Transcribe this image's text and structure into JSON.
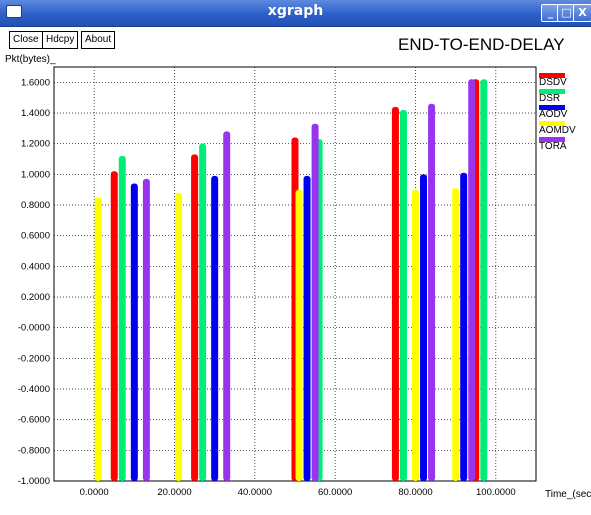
{
  "window": {
    "title": "xgraph",
    "controls": {
      "minimize": "_",
      "maximize": "□",
      "close": "X"
    }
  },
  "toolbar": {
    "close_label": "Close",
    "hdcpy_label": "Hdcpy",
    "about_label": "About"
  },
  "chart_data": {
    "type": "bar",
    "title": "END-TO-END-DELAY",
    "ylabel": "Pkt(bytes)_",
    "xlabel": "Time_(sec)",
    "xlim": [
      -10,
      110
    ],
    "ylim": [
      -1.0,
      1.7
    ],
    "x_ticks": [
      {
        "v": 0,
        "label": "0.0000"
      },
      {
        "v": 20,
        "label": "20.0000"
      },
      {
        "v": 40,
        "label": "40.0000"
      },
      {
        "v": 60,
        "label": "60.0000"
      },
      {
        "v": 80,
        "label": "80.0000"
      },
      {
        "v": 100,
        "label": "100.0000"
      }
    ],
    "y_ticks": [
      {
        "v": 1.6,
        "label": "1.6000"
      },
      {
        "v": 1.4,
        "label": "1.4000"
      },
      {
        "v": 1.2,
        "label": "1.2000"
      },
      {
        "v": 1.0,
        "label": "1.0000"
      },
      {
        "v": 0.8,
        "label": "0.8000"
      },
      {
        "v": 0.6,
        "label": "0.6000"
      },
      {
        "v": 0.4,
        "label": "0.4000"
      },
      {
        "v": 0.2,
        "label": "0.2000"
      },
      {
        "v": 0.0,
        "label": "-0.0000"
      },
      {
        "v": -0.2,
        "label": "-0.2000"
      },
      {
        "v": -0.4,
        "label": "-0.4000"
      },
      {
        "v": -0.6,
        "label": "-0.6000"
      },
      {
        "v": -0.8,
        "label": "-0.8000"
      },
      {
        "v": -1.0,
        "label": "-1.0000"
      }
    ],
    "grid": true,
    "legend_position": "right",
    "series": [
      {
        "name": "DSDV",
        "color": "#ff0000",
        "x": [
          5,
          25,
          50,
          75,
          95
        ],
        "values": [
          1.02,
          1.13,
          1.24,
          1.44,
          1.62
        ]
      },
      {
        "name": "DSR",
        "color": "#00ee77",
        "x": [
          7,
          27,
          56,
          77,
          97
        ],
        "values": [
          1.12,
          1.2,
          1.23,
          1.42,
          1.62
        ]
      },
      {
        "name": "AODV",
        "color": "#0000ee",
        "x": [
          10,
          30,
          53,
          82,
          92
        ],
        "values": [
          0.94,
          0.99,
          0.99,
          1.0,
          1.01
        ]
      },
      {
        "name": "AOMDV",
        "color": "#ffff00",
        "x": [
          1,
          21,
          51,
          80,
          90
        ],
        "values": [
          0.85,
          0.88,
          0.9,
          0.9,
          0.91
        ]
      },
      {
        "name": "TORA",
        "color": "#9933ee",
        "x": [
          13,
          33,
          55,
          84,
          94
        ],
        "values": [
          0.97,
          1.28,
          1.33,
          1.46,
          1.62
        ]
      }
    ]
  }
}
